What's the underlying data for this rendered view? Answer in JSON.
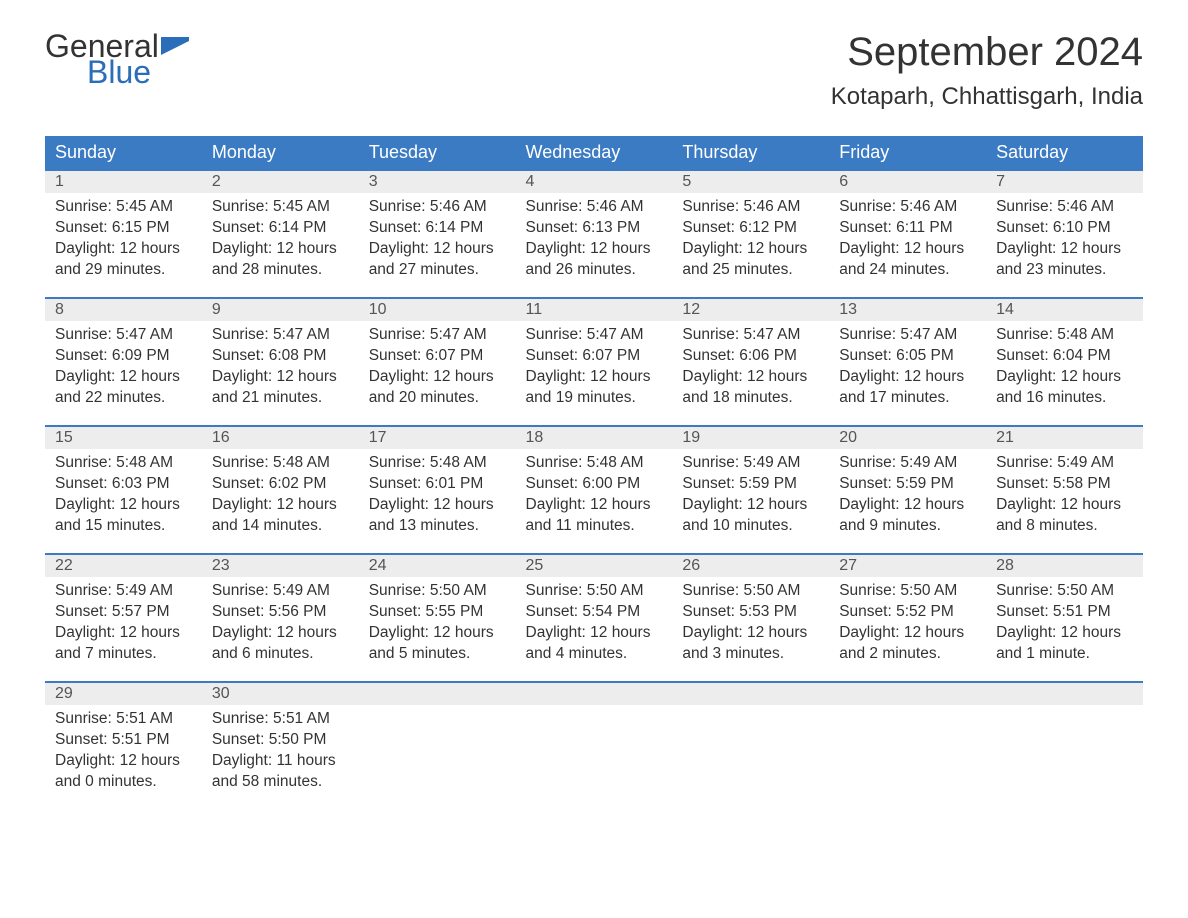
{
  "logo": {
    "general": "General",
    "blue": "Blue",
    "flag_color": "#2a6db8"
  },
  "title": "September 2024",
  "location": "Kotaparh, Chhattisgarh, India",
  "colors": {
    "header_bg": "#3b7bc4",
    "header_text": "#ffffff",
    "daynum_bg": "#ededed",
    "daynum_text": "#555555",
    "body_text": "#333333",
    "row_border": "#3b7bc4",
    "page_bg": "#ffffff",
    "logo_blue": "#2a6db8",
    "logo_dark": "#333333"
  },
  "weekdays": [
    "Sunday",
    "Monday",
    "Tuesday",
    "Wednesday",
    "Thursday",
    "Friday",
    "Saturday"
  ],
  "weeks": [
    [
      {
        "day": "1",
        "sunrise": "Sunrise: 5:45 AM",
        "sunset": "Sunset: 6:15 PM",
        "daylight1": "Daylight: 12 hours",
        "daylight2": "and 29 minutes."
      },
      {
        "day": "2",
        "sunrise": "Sunrise: 5:45 AM",
        "sunset": "Sunset: 6:14 PM",
        "daylight1": "Daylight: 12 hours",
        "daylight2": "and 28 minutes."
      },
      {
        "day": "3",
        "sunrise": "Sunrise: 5:46 AM",
        "sunset": "Sunset: 6:14 PM",
        "daylight1": "Daylight: 12 hours",
        "daylight2": "and 27 minutes."
      },
      {
        "day": "4",
        "sunrise": "Sunrise: 5:46 AM",
        "sunset": "Sunset: 6:13 PM",
        "daylight1": "Daylight: 12 hours",
        "daylight2": "and 26 minutes."
      },
      {
        "day": "5",
        "sunrise": "Sunrise: 5:46 AM",
        "sunset": "Sunset: 6:12 PM",
        "daylight1": "Daylight: 12 hours",
        "daylight2": "and 25 minutes."
      },
      {
        "day": "6",
        "sunrise": "Sunrise: 5:46 AM",
        "sunset": "Sunset: 6:11 PM",
        "daylight1": "Daylight: 12 hours",
        "daylight2": "and 24 minutes."
      },
      {
        "day": "7",
        "sunrise": "Sunrise: 5:46 AM",
        "sunset": "Sunset: 6:10 PM",
        "daylight1": "Daylight: 12 hours",
        "daylight2": "and 23 minutes."
      }
    ],
    [
      {
        "day": "8",
        "sunrise": "Sunrise: 5:47 AM",
        "sunset": "Sunset: 6:09 PM",
        "daylight1": "Daylight: 12 hours",
        "daylight2": "and 22 minutes."
      },
      {
        "day": "9",
        "sunrise": "Sunrise: 5:47 AM",
        "sunset": "Sunset: 6:08 PM",
        "daylight1": "Daylight: 12 hours",
        "daylight2": "and 21 minutes."
      },
      {
        "day": "10",
        "sunrise": "Sunrise: 5:47 AM",
        "sunset": "Sunset: 6:07 PM",
        "daylight1": "Daylight: 12 hours",
        "daylight2": "and 20 minutes."
      },
      {
        "day": "11",
        "sunrise": "Sunrise: 5:47 AM",
        "sunset": "Sunset: 6:07 PM",
        "daylight1": "Daylight: 12 hours",
        "daylight2": "and 19 minutes."
      },
      {
        "day": "12",
        "sunrise": "Sunrise: 5:47 AM",
        "sunset": "Sunset: 6:06 PM",
        "daylight1": "Daylight: 12 hours",
        "daylight2": "and 18 minutes."
      },
      {
        "day": "13",
        "sunrise": "Sunrise: 5:47 AM",
        "sunset": "Sunset: 6:05 PM",
        "daylight1": "Daylight: 12 hours",
        "daylight2": "and 17 minutes."
      },
      {
        "day": "14",
        "sunrise": "Sunrise: 5:48 AM",
        "sunset": "Sunset: 6:04 PM",
        "daylight1": "Daylight: 12 hours",
        "daylight2": "and 16 minutes."
      }
    ],
    [
      {
        "day": "15",
        "sunrise": "Sunrise: 5:48 AM",
        "sunset": "Sunset: 6:03 PM",
        "daylight1": "Daylight: 12 hours",
        "daylight2": "and 15 minutes."
      },
      {
        "day": "16",
        "sunrise": "Sunrise: 5:48 AM",
        "sunset": "Sunset: 6:02 PM",
        "daylight1": "Daylight: 12 hours",
        "daylight2": "and 14 minutes."
      },
      {
        "day": "17",
        "sunrise": "Sunrise: 5:48 AM",
        "sunset": "Sunset: 6:01 PM",
        "daylight1": "Daylight: 12 hours",
        "daylight2": "and 13 minutes."
      },
      {
        "day": "18",
        "sunrise": "Sunrise: 5:48 AM",
        "sunset": "Sunset: 6:00 PM",
        "daylight1": "Daylight: 12 hours",
        "daylight2": "and 11 minutes."
      },
      {
        "day": "19",
        "sunrise": "Sunrise: 5:49 AM",
        "sunset": "Sunset: 5:59 PM",
        "daylight1": "Daylight: 12 hours",
        "daylight2": "and 10 minutes."
      },
      {
        "day": "20",
        "sunrise": "Sunrise: 5:49 AM",
        "sunset": "Sunset: 5:59 PM",
        "daylight1": "Daylight: 12 hours",
        "daylight2": "and 9 minutes."
      },
      {
        "day": "21",
        "sunrise": "Sunrise: 5:49 AM",
        "sunset": "Sunset: 5:58 PM",
        "daylight1": "Daylight: 12 hours",
        "daylight2": "and 8 minutes."
      }
    ],
    [
      {
        "day": "22",
        "sunrise": "Sunrise: 5:49 AM",
        "sunset": "Sunset: 5:57 PM",
        "daylight1": "Daylight: 12 hours",
        "daylight2": "and 7 minutes."
      },
      {
        "day": "23",
        "sunrise": "Sunrise: 5:49 AM",
        "sunset": "Sunset: 5:56 PM",
        "daylight1": "Daylight: 12 hours",
        "daylight2": "and 6 minutes."
      },
      {
        "day": "24",
        "sunrise": "Sunrise: 5:50 AM",
        "sunset": "Sunset: 5:55 PM",
        "daylight1": "Daylight: 12 hours",
        "daylight2": "and 5 minutes."
      },
      {
        "day": "25",
        "sunrise": "Sunrise: 5:50 AM",
        "sunset": "Sunset: 5:54 PM",
        "daylight1": "Daylight: 12 hours",
        "daylight2": "and 4 minutes."
      },
      {
        "day": "26",
        "sunrise": "Sunrise: 5:50 AM",
        "sunset": "Sunset: 5:53 PM",
        "daylight1": "Daylight: 12 hours",
        "daylight2": "and 3 minutes."
      },
      {
        "day": "27",
        "sunrise": "Sunrise: 5:50 AM",
        "sunset": "Sunset: 5:52 PM",
        "daylight1": "Daylight: 12 hours",
        "daylight2": "and 2 minutes."
      },
      {
        "day": "28",
        "sunrise": "Sunrise: 5:50 AM",
        "sunset": "Sunset: 5:51 PM",
        "daylight1": "Daylight: 12 hours",
        "daylight2": "and 1 minute."
      }
    ],
    [
      {
        "day": "29",
        "sunrise": "Sunrise: 5:51 AM",
        "sunset": "Sunset: 5:51 PM",
        "daylight1": "Daylight: 12 hours",
        "daylight2": "and 0 minutes."
      },
      {
        "day": "30",
        "sunrise": "Sunrise: 5:51 AM",
        "sunset": "Sunset: 5:50 PM",
        "daylight1": "Daylight: 11 hours",
        "daylight2": "and 58 minutes."
      },
      null,
      null,
      null,
      null,
      null
    ]
  ]
}
